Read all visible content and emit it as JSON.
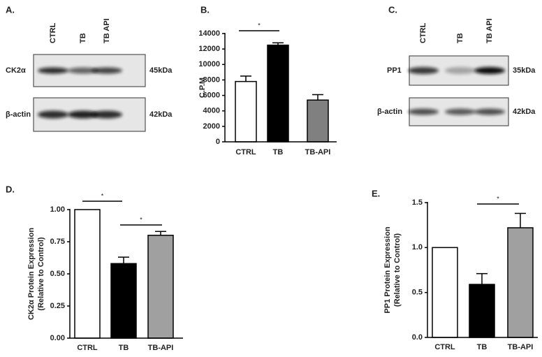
{
  "blots": [
    {
      "panel_label": "A.",
      "lanes": [
        "CTRL",
        "TB",
        "TB API"
      ],
      "rows": [
        {
          "label": "CK2α",
          "size": "45kDa"
        },
        {
          "label": "β-actin",
          "size": "42kDa"
        }
      ]
    },
    {
      "panel_label": "C.",
      "lanes": [
        "CTRL",
        "TB",
        "TB API"
      ],
      "rows": [
        {
          "label": "PP1",
          "size": "35kDa"
        },
        {
          "label": "β-actin",
          "size": "42kDa"
        }
      ]
    }
  ],
  "chart_data": [
    {
      "type": "bar",
      "panel_label": "B.",
      "ylabel": [
        "C.P.M"
      ],
      "categories": [
        "CTRL",
        "TB",
        "TB-API"
      ],
      "values": [
        7800,
        12500,
        5400
      ],
      "errors": [
        700,
        300,
        700
      ],
      "colors": [
        "#ffffff",
        "#000000",
        "#808080"
      ],
      "ylim": [
        0,
        14000
      ],
      "yticks": [
        0,
        2000,
        4000,
        6000,
        8000,
        10000,
        12000,
        14000
      ],
      "annotations": [
        "*"
      ]
    },
    {
      "type": "bar",
      "panel_label": "D.",
      "ylabel": [
        "CK2α Protein Expression",
        "(Relative to Control)"
      ],
      "categories": [
        "CTRL",
        "TB",
        "TB-API"
      ],
      "values": [
        1.0,
        0.58,
        0.8
      ],
      "errors": [
        null,
        0.05,
        0.03
      ],
      "colors": [
        "#ffffff",
        "#000000",
        "#a0a0a0"
      ],
      "ylim": [
        0,
        1.0
      ],
      "yticks": [
        {
          "value": 0,
          "label": "0.00"
        },
        0.25,
        {
          "value": 0.5,
          "label": "0.50"
        },
        0.75,
        {
          "value": 1,
          "label": "1.00"
        }
      ],
      "annotations": [
        "*",
        "*"
      ]
    },
    {
      "type": "bar",
      "panel_label": "E.",
      "ylabel": [
        "PP1 Protein Expression",
        "(Relative to Control)"
      ],
      "categories": [
        "CTRL",
        "TB",
        "TB-API"
      ],
      "values": [
        1.0,
        0.59,
        1.22
      ],
      "errors": [
        null,
        0.12,
        0.16
      ],
      "colors": [
        "#ffffff",
        "#000000",
        "#a0a0a0"
      ],
      "ylim": [
        0,
        1.5
      ],
      "yticks": [
        {
          "value": 0,
          "label": "0.0"
        },
        0.5,
        {
          "value": 1,
          "label": "1.0"
        },
        1.5
      ],
      "annotations": [
        "*"
      ]
    }
  ]
}
